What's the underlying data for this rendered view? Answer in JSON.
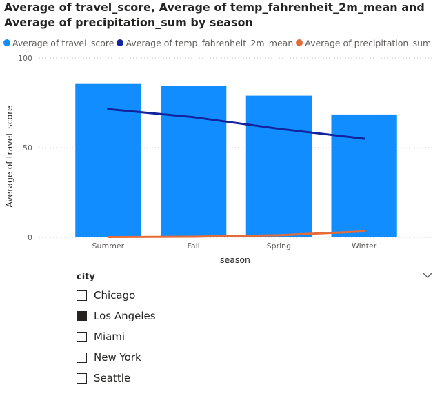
{
  "chart_data": {
    "type": "bar",
    "title": "Average of travel_score, Average of temp_fahrenheit_2m_mean and Average of precipitation_sum by season",
    "xlabel": "season",
    "ylabel": "Average of travel_score",
    "categories": [
      "Summer",
      "Fall",
      "Spring",
      "Winter"
    ],
    "ylim": [
      0,
      100
    ],
    "yticks": [
      "0",
      "50",
      "100"
    ],
    "grid": true,
    "legend_position": "top-left",
    "series": [
      {
        "name": "Average of travel_score",
        "type": "bar",
        "color": "#118DFF",
        "values": [
          85.5,
          84.5,
          79,
          68.5
        ]
      },
      {
        "name": "Average of temp_fahrenheit_2m_mean",
        "type": "line",
        "color": "#12239E",
        "values": [
          71.5,
          67,
          60.5,
          55
        ]
      },
      {
        "name": "Average of precipitation_sum",
        "type": "line",
        "color": "#E66C37",
        "values": [
          0.2,
          0.4,
          1.2,
          3.3
        ]
      }
    ]
  },
  "slicer": {
    "title": "city",
    "items": [
      {
        "label": "Chicago",
        "checked": false
      },
      {
        "label": "Los Angeles",
        "checked": true
      },
      {
        "label": "Miami",
        "checked": false
      },
      {
        "label": "New York",
        "checked": false
      },
      {
        "label": "Seattle",
        "checked": false
      }
    ]
  }
}
